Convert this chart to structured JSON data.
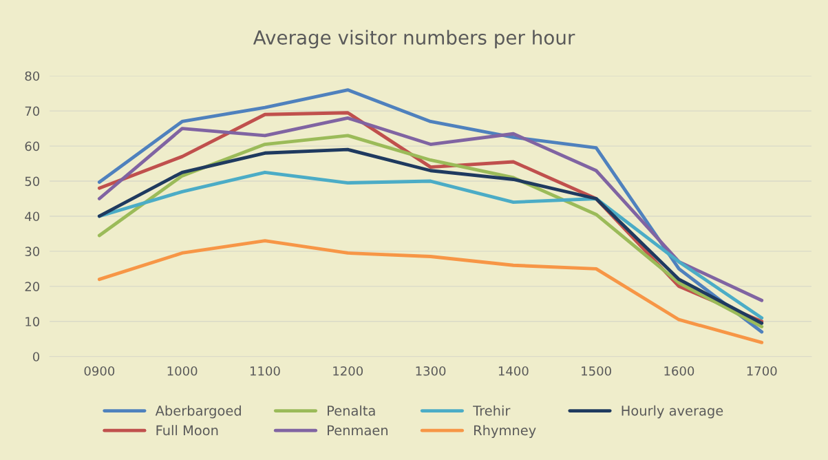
{
  "chart_data": {
    "type": "line",
    "title": "Average visitor numbers per hour",
    "categories": [
      "0900",
      "1000",
      "1100",
      "1200",
      "1300",
      "1400",
      "1500",
      "1600",
      "1700"
    ],
    "series": [
      {
        "name": "Aberbargoed",
        "color": "#4f81bd",
        "values": [
          49.7,
          67,
          71,
          76,
          67,
          62.5,
          59.5,
          25,
          7
        ]
      },
      {
        "name": "Full Moon",
        "color": "#c0504d",
        "values": [
          48,
          57,
          69,
          69.5,
          54,
          55.5,
          45,
          20,
          10
        ]
      },
      {
        "name": "Penalta",
        "color": "#9bbb59",
        "values": [
          34.5,
          51.5,
          60.5,
          63,
          56,
          51,
          40.5,
          21,
          8.5
        ]
      },
      {
        "name": "Penmaen",
        "color": "#8064a2",
        "values": [
          45,
          65,
          63,
          68,
          60.5,
          63.5,
          53,
          27,
          16
        ]
      },
      {
        "name": "Trehir",
        "color": "#4bacc6",
        "values": [
          40,
          47,
          52.5,
          49.5,
          50,
          44,
          45,
          27,
          11
        ]
      },
      {
        "name": "Rhymney",
        "color": "#f79646",
        "values": [
          22,
          29.5,
          33,
          29.5,
          28.5,
          26,
          25,
          10.5,
          4
        ]
      },
      {
        "name": "Hourly average",
        "color": "#1f3a5f",
        "values": [
          40,
          52.5,
          58,
          59,
          53,
          50.5,
          45,
          22,
          9.5
        ]
      }
    ],
    "ylim": [
      0,
      80
    ],
    "yticks": [
      0,
      10,
      20,
      30,
      40,
      50,
      60,
      70,
      80
    ],
    "grid": "y",
    "legend": "bottom",
    "marker": "none",
    "line_style": "solid"
  }
}
